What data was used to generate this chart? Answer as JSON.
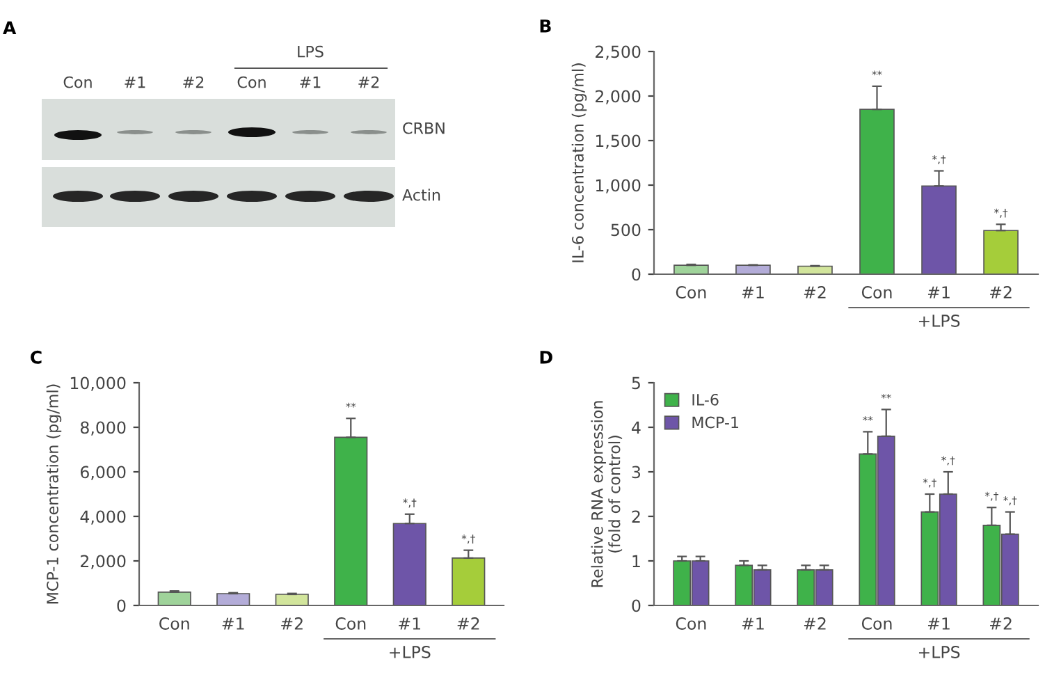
{
  "chart_data": [
    {
      "type": "other",
      "title": "A",
      "categories": [
        "Con",
        "#1",
        "#2",
        "Con",
        "#1",
        "#2"
      ],
      "annotations": [
        "LPS",
        "CRBN",
        "Actin"
      ]
    },
    {
      "type": "bar",
      "title": "B",
      "ylabel": "IL-6 concentration (pg/ml)",
      "xlabel": "+LPS",
      "categories": [
        "Con",
        "#1",
        "#2",
        "Con",
        "#1",
        "#2"
      ],
      "values": [
        100,
        100,
        90,
        1850,
        990,
        490
      ],
      "errors": [
        10,
        5,
        5,
        260,
        170,
        70
      ],
      "colors": [
        "#9fd39a",
        "#b3acd8",
        "#d2e59c",
        "#3fb24a",
        "#6e55a8",
        "#a5cd3a"
      ],
      "ylim": [
        0,
        2500
      ],
      "yticks": [
        {
          "value": 0,
          "label": "0"
        },
        {
          "value": 500,
          "label": "500"
        },
        {
          "value": 1000,
          "label": "1,000"
        },
        {
          "value": 1500,
          "label": "1,500"
        },
        {
          "value": 2000,
          "label": "2,000"
        },
        {
          "value": 2500,
          "label": "2,500"
        }
      ],
      "annotations": [
        "**",
        "*,†",
        "*,†"
      ]
    },
    {
      "type": "bar",
      "title": "C",
      "ylabel": "MCP-1 concentration (pg/ml)",
      "xlabel": "+LPS",
      "categories": [
        "Con",
        "#1",
        "#2",
        "Con",
        "#1",
        "#2"
      ],
      "values": [
        600,
        530,
        500,
        7550,
        3680,
        2130
      ],
      "errors": [
        50,
        40,
        40,
        850,
        420,
        350
      ],
      "colors": [
        "#9fd39a",
        "#b3acd8",
        "#d2e59c",
        "#3fb24a",
        "#6e55a8",
        "#a5cd3a"
      ],
      "ylim": [
        0,
        10000
      ],
      "yticks": [
        {
          "value": 0,
          "label": "0"
        },
        {
          "value": 2000,
          "label": "2,000"
        },
        {
          "value": 4000,
          "label": "4,000"
        },
        {
          "value": 6000,
          "label": "6,000"
        },
        {
          "value": 8000,
          "label": "8,000"
        },
        {
          "value": 10000,
          "label": "10,000"
        }
      ],
      "annotations": [
        "**",
        "*,†",
        "*,†"
      ]
    },
    {
      "type": "bar",
      "title": "D",
      "ylabel": "Relative RNA expression\n(fold of control)",
      "xlabel": "+LPS",
      "categories": [
        "Con",
        "#1",
        "#2",
        "Con",
        "#1",
        "#2"
      ],
      "legend": "top left",
      "ylim": [
        0,
        5
      ],
      "yticks": [
        0,
        1,
        2,
        3,
        4,
        5
      ],
      "series": [
        {
          "name": "IL-6",
          "color": "#3fb24a",
          "values": [
            1.0,
            0.9,
            0.8,
            3.4,
            2.1,
            1.8
          ],
          "errors": [
            0.1,
            0.1,
            0.1,
            0.5,
            0.4,
            0.4
          ]
        },
        {
          "name": "MCP-1",
          "color": "#6e55a8",
          "values": [
            1.0,
            0.8,
            0.8,
            3.8,
            2.5,
            1.6
          ],
          "errors": [
            0.1,
            0.1,
            0.1,
            0.6,
            0.5,
            0.5
          ]
        }
      ],
      "annotations": [
        "**",
        "**",
        "*,†",
        "*,†",
        "*,†",
        "*,†"
      ]
    }
  ]
}
